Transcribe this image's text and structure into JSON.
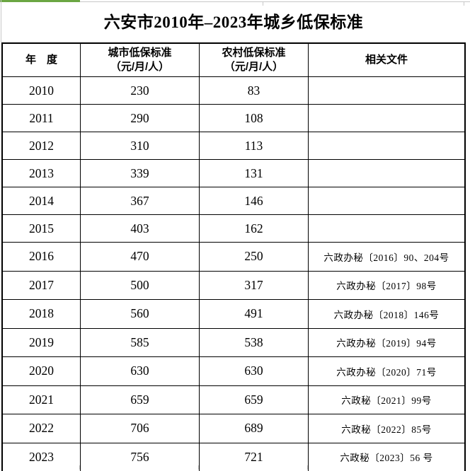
{
  "title": "六安市2010年–2023年城乡低保标准",
  "table": {
    "headers": {
      "year": "年　度",
      "urban_line1": "城市低保标准",
      "urban_line2": "（元/月/人）",
      "rural_line1": "农村低保标准",
      "rural_line2": "（元/月/人）",
      "docs": "相关文件"
    },
    "rows": [
      {
        "year": "2010",
        "urban": "230",
        "rural": "83",
        "doc": ""
      },
      {
        "year": "2011",
        "urban": "290",
        "rural": "108",
        "doc": ""
      },
      {
        "year": "2012",
        "urban": "310",
        "rural": "113",
        "doc": ""
      },
      {
        "year": "2013",
        "urban": "339",
        "rural": "131",
        "doc": ""
      },
      {
        "year": "2014",
        "urban": "367",
        "rural": "146",
        "doc": ""
      },
      {
        "year": "2015",
        "urban": "403",
        "rural": "162",
        "doc": ""
      },
      {
        "year": "2016",
        "urban": "470",
        "rural": "250",
        "doc": "六政办秘〔2016〕90、204号"
      },
      {
        "year": "2017",
        "urban": "500",
        "rural": "317",
        "doc": "六政办秘〔2017〕98号"
      },
      {
        "year": "2018",
        "urban": "560",
        "rural": "491",
        "doc": "六政办秘〔2018〕146号"
      },
      {
        "year": "2019",
        "urban": "585",
        "rural": "538",
        "doc": "六政办秘〔2019〕94号"
      },
      {
        "year": "2020",
        "urban": "630",
        "rural": "630",
        "doc": "六政办秘〔2020〕71号"
      },
      {
        "year": "2021",
        "urban": "659",
        "rural": "659",
        "doc": "六政秘〔2021〕99号"
      },
      {
        "year": "2022",
        "urban": "706",
        "rural": "689",
        "doc": "六政秘〔2022〕85号"
      },
      {
        "year": "2023",
        "urban": "756",
        "rural": "721",
        "doc": "六政秘〔2023〕56 号"
      }
    ]
  },
  "colors": {
    "accent_green": "#6BA643",
    "border_black": "#000000",
    "gridline_gray": "#C8C8C8",
    "background": "#FFFFFF"
  }
}
